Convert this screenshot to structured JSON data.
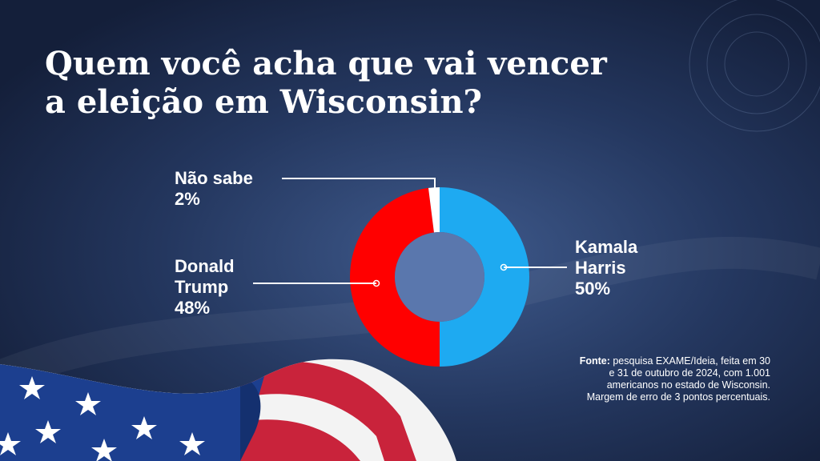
{
  "title": {
    "line1": "Quem você acha que vai vencer",
    "line2": "a eleição em Wisconsin?"
  },
  "source": {
    "label": "Fonte:",
    "text": "pesquisa EXAME/Ideia, feita em 30 e 31 de outubro de 2024, com 1.001 americanos no estado de Wisconsin. Margem de erro de 3 pontos percentuais."
  },
  "labels": {
    "nao_sabe": {
      "name": "Não sabe",
      "value": "2%"
    },
    "trump": {
      "name_line1": "Donald",
      "name_line2": "Trump",
      "value": "48%"
    },
    "harris": {
      "name_line1": "Kamala",
      "name_line2": "Harris",
      "value": "50%"
    }
  },
  "colors": {
    "harris": "#1eaaf1",
    "trump": "#ff0000",
    "nao_sabe": "#ffffff",
    "background": "#24375f"
  },
  "chart_data": {
    "type": "pie",
    "variant": "donut",
    "title": "Quem você acha que vai vencer a eleição em Wisconsin?",
    "categories": [
      "Kamala Harris",
      "Donald Trump",
      "Não sabe"
    ],
    "values": [
      50,
      48,
      2
    ],
    "unit": "%",
    "colors": [
      "#1eaaf1",
      "#ff0000",
      "#ffffff"
    ]
  }
}
